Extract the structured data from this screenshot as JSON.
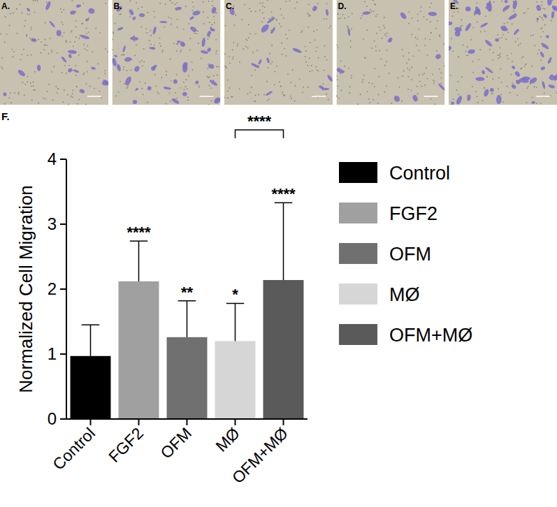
{
  "figure": {
    "panels": [
      "A.",
      "B.",
      "C.",
      "D.",
      "E."
    ],
    "chart_label": "F."
  },
  "chart_data": {
    "type": "bar",
    "categories": [
      "Control",
      "FGF2",
      "OFM",
      "MØ",
      "OFM+MØ"
    ],
    "values": [
      0.97,
      2.12,
      1.26,
      1.2,
      2.14
    ],
    "errors": [
      0.48,
      0.62,
      0.56,
      0.58,
      1.19
    ],
    "colors": [
      "#000000",
      "#a0a0a0",
      "#707070",
      "#d6d6d6",
      "#5a5a5a"
    ],
    "significance": [
      null,
      "****",
      "**",
      "*",
      "****"
    ],
    "comparisons": [
      {
        "between": [
          "MØ",
          "OFM+MØ"
        ],
        "label": "****"
      }
    ],
    "y_label": "Normalized Cell Migration",
    "ylim": [
      0,
      4
    ],
    "yticks": [
      0,
      1,
      2,
      3,
      4
    ],
    "legend": "right",
    "grid": false
  }
}
